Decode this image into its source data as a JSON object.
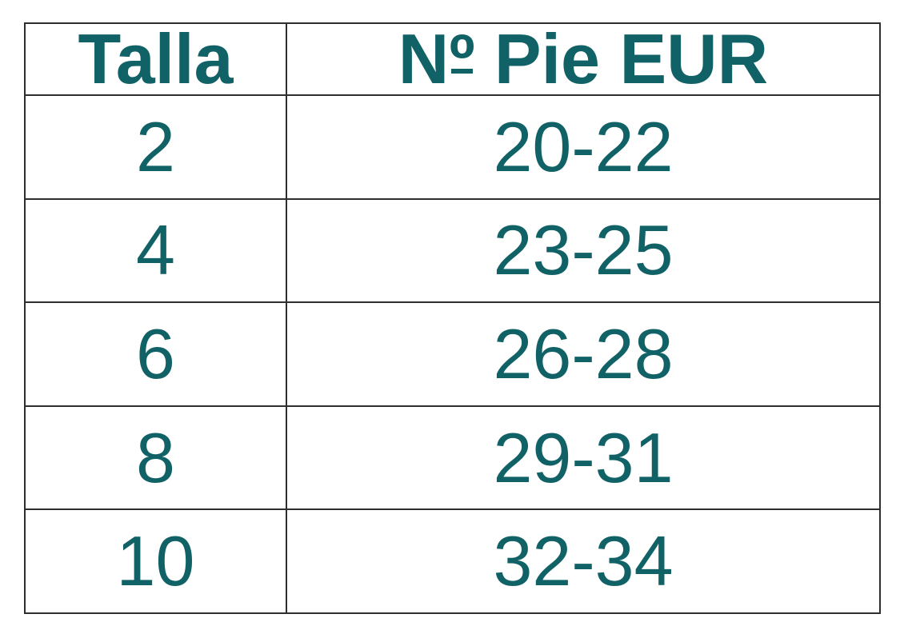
{
  "page": {
    "background_color": "#ffffff",
    "text_color": "#116266",
    "border_color": "#2e2e2e"
  },
  "table": {
    "columns": [
      "Talla",
      "Nº Pie EUR"
    ],
    "header": {
      "col1": "Talla",
      "col2_full": "Nº Pie EUR",
      "col2_parts": {
        "prefix": "N",
        "ordinal": "º",
        "rest": " Pie EUR"
      }
    },
    "rows": [
      {
        "talla": "2",
        "pie_eur": "20-22"
      },
      {
        "talla": "4",
        "pie_eur": "23-25"
      },
      {
        "talla": "6",
        "pie_eur": "26-28"
      },
      {
        "talla": "8",
        "pie_eur": "29-31"
      },
      {
        "talla": "10",
        "pie_eur": "32-34"
      }
    ]
  }
}
